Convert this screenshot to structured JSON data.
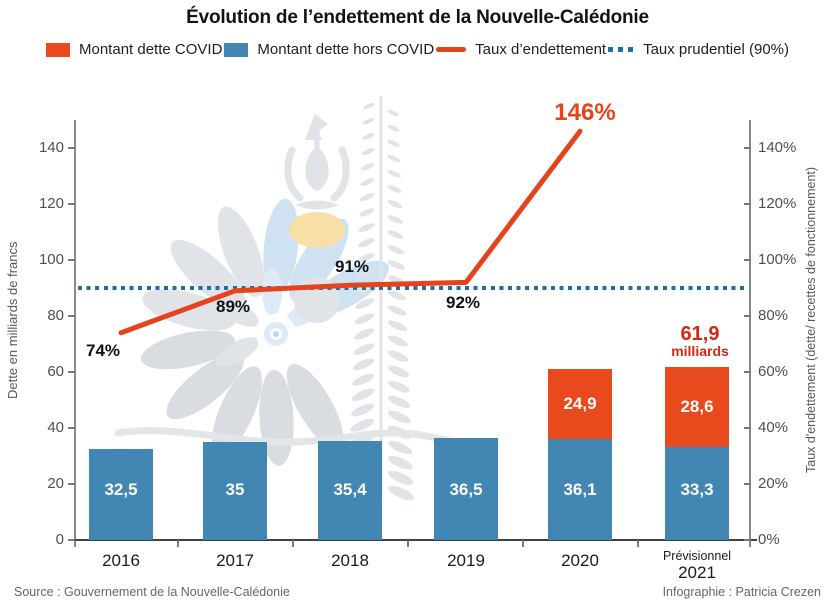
{
  "title": "Évolution de l’endettement de la Nouvelle-Calédonie",
  "legend": [
    {
      "label": "Montant dette COVID",
      "swatch": "square",
      "color": "#e8491d"
    },
    {
      "label": "Montant dette hors COVID",
      "swatch": "square",
      "color": "#4287b3"
    },
    {
      "label": "Taux d’endettement",
      "swatch": "line",
      "color": "#e6421c"
    },
    {
      "label": "Taux prudentiel (90%)",
      "swatch": "dots",
      "color": "#1e6fa8"
    }
  ],
  "footer": {
    "source": "Source : Gouvernement de la Nouvelle-Calédonie",
    "credit": "Infographie : Patricia Crezen"
  },
  "chart_data": {
    "type": "bar+line",
    "categories": [
      "2016",
      "2017",
      "2018",
      "2019",
      "2020",
      "2021"
    ],
    "category_note": {
      "index": 5,
      "text": "Prévisionnel"
    },
    "series": [
      {
        "name": "Montant dette hors COVID",
        "color": "#4287b3",
        "values": [
          32.5,
          35,
          35.4,
          36.5,
          36.1,
          33.3
        ],
        "labels": [
          "32,5",
          "35",
          "35,4",
          "36,5",
          "36,1",
          "33,3"
        ]
      },
      {
        "name": "Montant dette COVID",
        "color": "#e8491d",
        "values": [
          null,
          null,
          null,
          null,
          24.9,
          28.6
        ],
        "labels": [
          "",
          "",
          "",
          "",
          "24,9",
          "28,6"
        ]
      }
    ],
    "line": {
      "name": "Taux d’endettement",
      "color": "#e6421c",
      "values": [
        74,
        89,
        91,
        92,
        146
      ],
      "labels": [
        "74%",
        "89%",
        "91%",
        "92%",
        "146%"
      ]
    },
    "prudential_line": {
      "value": 90,
      "color": "#1e6fa8",
      "label": "Taux prudentiel (90%)"
    },
    "total_label": {
      "value": "61,9",
      "unit": "milliards",
      "color": "#d42714"
    },
    "left_axis": {
      "title": "Dette en milliards de francs",
      "ticks": [
        0,
        20,
        40,
        60,
        80,
        100,
        120,
        140
      ]
    },
    "right_axis": {
      "title": "Taux d'endettement (dette/ recettes de fonctionnement)",
      "ticks": [
        "0%",
        "20%",
        "40%",
        "60%",
        "80%",
        "100%",
        "120%",
        "140%"
      ]
    },
    "ylim": [
      0,
      150
    ],
    "grid": false,
    "legend_position": "top"
  }
}
